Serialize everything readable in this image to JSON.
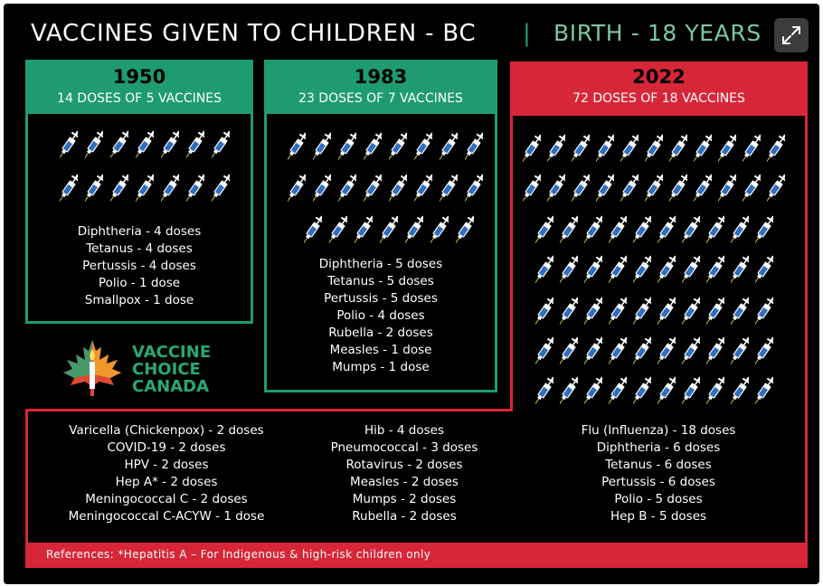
{
  "header": {
    "title": "VACCINES GIVEN TO CHILDREN - BC",
    "separator": "|",
    "subtitle": "BIRTH - 18 YEARS",
    "expand_icon": "expand-icon"
  },
  "year_1950": {
    "year": "1950",
    "summary": "14 DOSES OF 5 VACCINES",
    "syringe_count": 14,
    "vaccines": [
      "Diphtheria - 4 doses",
      "Tetanus - 4 doses",
      "Pertussis - 4 doses",
      "Polio - 1 dose",
      "Smallpox - 1 dose"
    ]
  },
  "year_1983": {
    "year": "1983",
    "summary": "23 DOSES OF 7 VACCINES",
    "syringe_count": 23,
    "vaccines": [
      "Diphtheria - 5 doses",
      "Tetanus - 5 doses",
      "Pertussis - 5 doses",
      "Polio - 4 doses",
      "Rubella - 2 doses",
      "Measles - 1 dose",
      "Mumps - 1 dose"
    ]
  },
  "year_2022": {
    "year": "2022",
    "summary": "72 DOSES OF 18 VACCINES",
    "syringe_count": 72,
    "vaccines_col1": [
      "Varicella (Chickenpox) - 2 doses",
      "COVID-19 - 2 doses",
      "HPV - 2 doses",
      "Hep A* - 2 doses",
      "Meningococcal C - 2 doses",
      "Meningococcal C-ACYW - 1 dose"
    ],
    "vaccines_col2": [
      "Hib - 4 doses",
      "Pneumococcal - 3 doses",
      "Rotavirus - 2 doses",
      "Measles - 2 doses",
      "Mumps - 2 doses",
      "Rubella - 2 doses"
    ],
    "vaccines_col3": [
      "Flu (Influenza) - 18 doses",
      "Diphtheria - 6 doses",
      "Tetanus - 6 doses",
      "Pertussis - 6 doses",
      "Polio - 5 doses",
      "Hep B - 5 doses"
    ]
  },
  "logo": {
    "lines": [
      "VACCINE",
      "CHOICE",
      "CANADA"
    ],
    "icon": "maple-leaf-candle-icon"
  },
  "references": "References: *Hepatitis A – For Indigenous & high-risk children only",
  "colors": {
    "green": "#1f9b72",
    "red": "#d72638",
    "background": "#000000"
  }
}
